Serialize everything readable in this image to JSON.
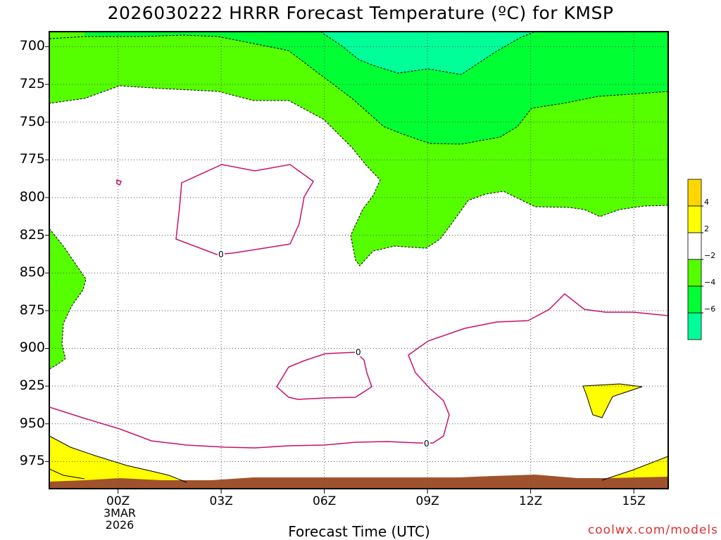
{
  "chart_data": {
    "type": "heatmap",
    "title": "2026030222 HRRR Forecast Temperature (ºC) for KMSP",
    "xlabel": "Forecast Time (UTC)",
    "credit": "coolwx.com/models",
    "x_ticks": [
      "00Z",
      "03Z",
      "06Z",
      "09Z",
      "12Z",
      "15Z"
    ],
    "x_date_label": [
      "3MAR",
      "2026"
    ],
    "y_ticks": [
      700,
      725,
      750,
      775,
      800,
      825,
      850,
      875,
      900,
      925,
      950,
      975
    ],
    "y_range": [
      690,
      993
    ],
    "x_range": [
      -2,
      16
    ],
    "y_axis_inverted": true,
    "grid": true,
    "colorbar": {
      "bands": [
        {
          "range": [
            4,
            6
          ],
          "color": "#ffd700"
        },
        {
          "range": [
            2,
            4
          ],
          "color": "#ffff00"
        },
        {
          "range": [
            -2,
            2
          ],
          "color": "#ffffff"
        },
        {
          "range": [
            -4,
            -2
          ],
          "color": "#55ff00"
        },
        {
          "range": [
            -6,
            -4
          ],
          "color": "#00ff33"
        },
        {
          "range": [
            -8,
            -6
          ],
          "color": "#00ff99"
        }
      ],
      "tick_labels": [
        "4",
        "2",
        "−2",
        "−4",
        "−6"
      ]
    },
    "contour_labels": [
      "0",
      "0",
      "0"
    ],
    "ground_color": "#a0522d"
  }
}
